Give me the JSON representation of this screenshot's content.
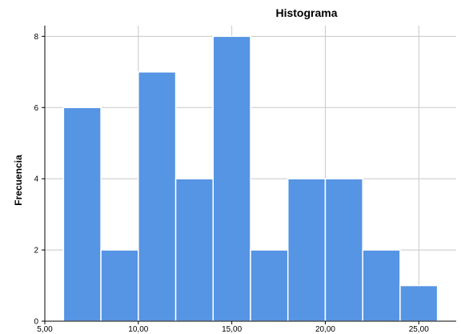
{
  "chart_data": {
    "type": "bar",
    "title": "Histograma",
    "xlabel": "",
    "ylabel": "Frecuencia",
    "bins": [
      {
        "start": 6,
        "end": 8,
        "count": 6
      },
      {
        "start": 8,
        "end": 10,
        "count": 2
      },
      {
        "start": 10,
        "end": 12,
        "count": 7
      },
      {
        "start": 12,
        "end": 14,
        "count": 4
      },
      {
        "start": 14,
        "end": 16,
        "count": 8
      },
      {
        "start": 16,
        "end": 18,
        "count": 2
      },
      {
        "start": 18,
        "end": 20,
        "count": 4
      },
      {
        "start": 20,
        "end": 22,
        "count": 4
      },
      {
        "start": 22,
        "end": 24,
        "count": 2
      },
      {
        "start": 24,
        "end": 26,
        "count": 1
      }
    ],
    "xlim": [
      5,
      27
    ],
    "ylim": [
      0,
      8.3
    ],
    "x_ticks": [
      5,
      10,
      15,
      20,
      25
    ],
    "x_tick_labels": [
      "5,00",
      "10,00",
      "15,00",
      "20,00",
      "25,00"
    ],
    "y_ticks": [
      0,
      2,
      4,
      6,
      8
    ],
    "y_tick_labels": [
      "0",
      "2",
      "4",
      "6",
      "8"
    ],
    "grid": true,
    "bar_color": "#5694e4",
    "bar_edge_color": "#ffffff",
    "grid_color": "#c8c8c8",
    "axis_color": "#000000"
  }
}
